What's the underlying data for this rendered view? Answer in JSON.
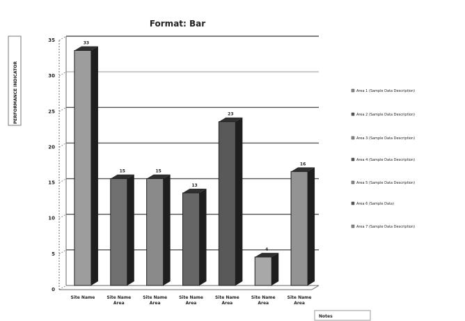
{
  "chart_data": {
    "type": "bar",
    "title": "Format: Bar",
    "ylabel": "PERFORMANCE INDICATOR",
    "ylim": [
      0,
      35
    ],
    "y_ticks": [
      "0",
      "5",
      "10",
      "15",
      "20",
      "25",
      "30",
      "35"
    ],
    "categories": [
      "Site Name",
      "Site Name Area",
      "Site Name Area",
      "Site Name Area",
      "Site Name Area",
      "Site Name Area",
      "Site Name Area"
    ],
    "values": [
      33,
      15,
      15,
      13,
      23,
      4,
      16
    ],
    "data_labels": [
      "33",
      "15",
      "15",
      "13",
      "23",
      "4",
      "16"
    ],
    "legend": [
      "Area 1 (Sample Data Description)",
      "Area 2 (Sample Data Description)",
      "Area 3 (Sample Data Description)",
      "Area 4 (Sample Data Description)",
      "Area 5 (Sample Data Description)",
      "Area 6 (Sample Data)",
      "Area 7 (Sample Data Description)"
    ],
    "footer_label": "Notes",
    "grid": true,
    "legend_position": "right",
    "colors": {
      "gray": "#8a8a8a",
      "dark": "#555555",
      "highlight": "#c8c8c8"
    }
  }
}
